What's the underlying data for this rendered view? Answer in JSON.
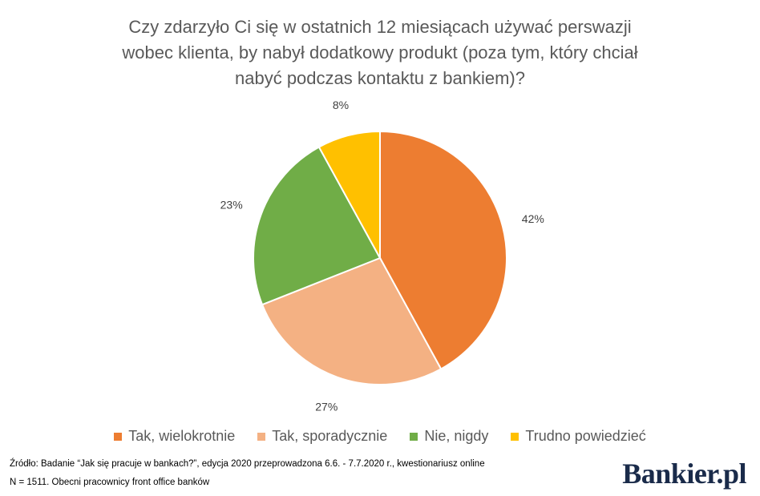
{
  "chart_data": {
    "type": "pie",
    "title_lines": [
      "Czy zdarzyło Ci się w ostatnich 12 miesiącach używać perswazji",
      "wobec klienta, by nabył dodatkowy produkt (poza tym, który chciał",
      "nabyć podczas kontaktu z bankiem)?"
    ],
    "categories": [
      "Tak, wielokrotnie",
      "Tak, sporadycznie",
      "Nie, nigdy",
      "Trudno powiedzieć"
    ],
    "values": [
      42,
      27,
      23,
      8
    ],
    "labels": [
      "42%",
      "27%",
      "23%",
      "8%"
    ],
    "colors": [
      "#ED7D31",
      "#F4B183",
      "#70AD47",
      "#FFC000"
    ],
    "legend_position": "bottom"
  },
  "footer": {
    "source": "Źródło: Badanie “Jak się pracuje w bankach?”, edycja 2020 przeprowadzona 6.6. - 7.7.2020 r., kwestionariusz online",
    "sample": "N = 1511. Obecni pracownicy front office banków"
  },
  "logo": {
    "text": "Bankier.pl"
  }
}
